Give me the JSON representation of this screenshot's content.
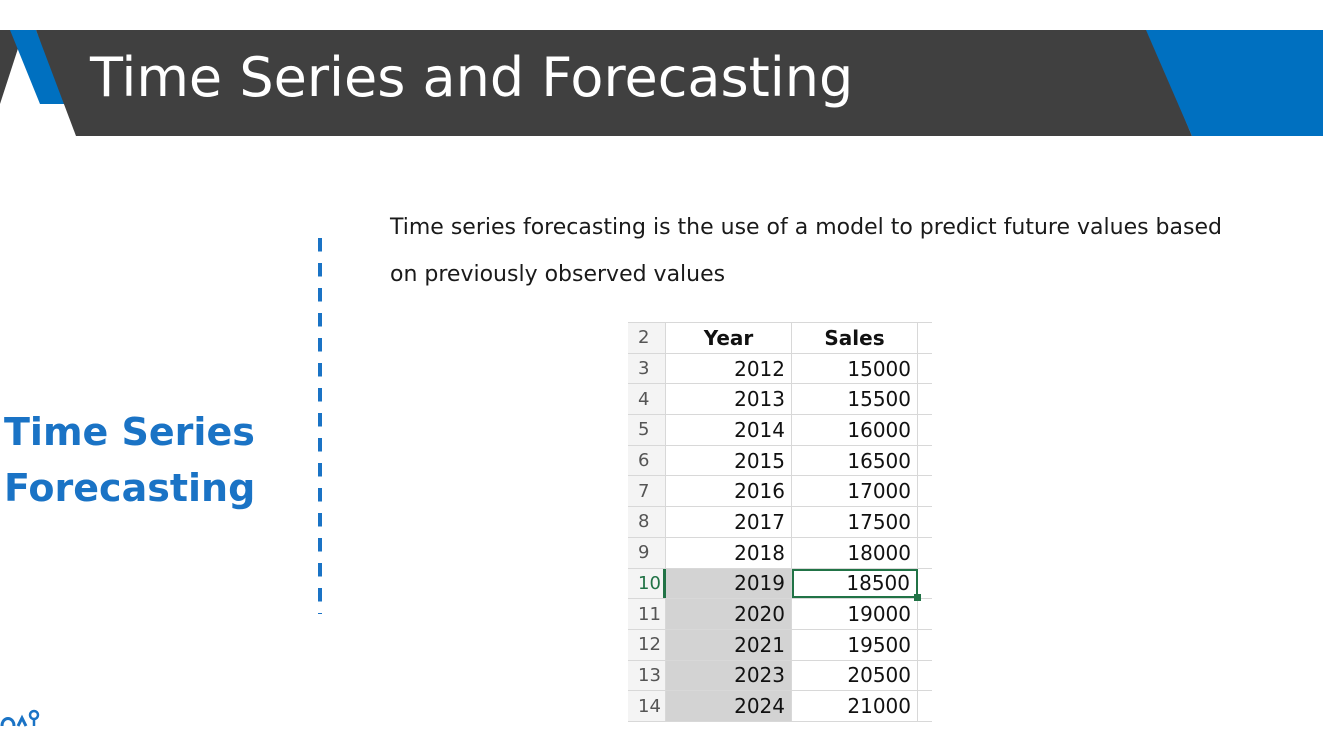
{
  "slide": {
    "title": "Time Series and Forecasting",
    "side_heading_line1": "Time Series",
    "side_heading_line2": "Forecasting",
    "body_line1": "Time series forecasting is the use of a model to predict future values based",
    "body_line2": "on previously observed values"
  },
  "colors": {
    "title_bar": "#404040",
    "accent_blue": "#0070c0",
    "heading_blue": "#1a73c5",
    "selection_green": "#217346",
    "shade_gray": "#d3d3d3"
  },
  "spreadsheet": {
    "header_row_number": "2",
    "headers": [
      "Year",
      "Sales"
    ],
    "rows": [
      {
        "row": "3",
        "year": "2012",
        "sales": "15000",
        "shaded": false,
        "selected": false
      },
      {
        "row": "4",
        "year": "2013",
        "sales": "15500",
        "shaded": false,
        "selected": false
      },
      {
        "row": "5",
        "year": "2014",
        "sales": "16000",
        "shaded": false,
        "selected": false
      },
      {
        "row": "6",
        "year": "2015",
        "sales": "16500",
        "shaded": false,
        "selected": false
      },
      {
        "row": "7",
        "year": "2016",
        "sales": "17000",
        "shaded": false,
        "selected": false
      },
      {
        "row": "8",
        "year": "2017",
        "sales": "17500",
        "shaded": false,
        "selected": false
      },
      {
        "row": "9",
        "year": "2018",
        "sales": "18000",
        "shaded": false,
        "selected": false
      },
      {
        "row": "10",
        "year": "2019",
        "sales": "18500",
        "shaded": true,
        "selected": true
      },
      {
        "row": "11",
        "year": "2020",
        "sales": "19000",
        "shaded": true,
        "selected": false
      },
      {
        "row": "12",
        "year": "2021",
        "sales": "19500",
        "shaded": true,
        "selected": false
      },
      {
        "row": "13",
        "year": "2023",
        "sales": "20500",
        "shaded": true,
        "selected": false
      },
      {
        "row": "14",
        "year": "2024",
        "sales": "21000",
        "shaded": true,
        "selected": false
      }
    ]
  },
  "icons": {
    "corner_logo": "logo-icon"
  }
}
